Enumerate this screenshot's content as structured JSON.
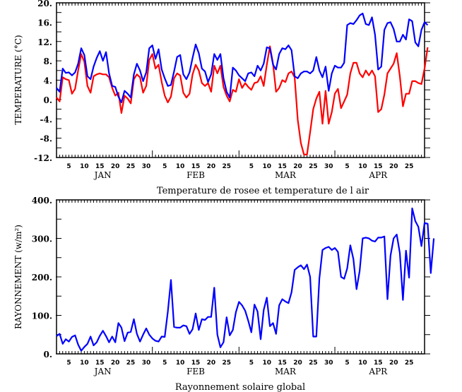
{
  "chart_data": [
    {
      "type": "line",
      "title": "Temperature de rosee et temperature de l air",
      "xlabel": "",
      "ylabel": "TEMPERATURE (°C)",
      "ylim": [
        -12,
        20
      ],
      "yticks": [
        "20.",
        "16.",
        "12.",
        "8.",
        "4.",
        "0.",
        "-4.",
        "-8.",
        "-12."
      ],
      "ytick_values": [
        20,
        16,
        12,
        8,
        4,
        0,
        -4,
        -8,
        -12
      ],
      "x_start": "Jan 1",
      "x_unit": "day",
      "xlim": [
        1,
        120
      ],
      "months": [
        "JAN",
        "FEB",
        "MAR",
        "APR"
      ],
      "day_tick_labels": [
        "5",
        "10",
        "15",
        "20",
        "25",
        "30",
        "5",
        "10",
        "15",
        "20",
        "25",
        "5",
        "10",
        "15",
        "20",
        "25",
        "30",
        "5",
        "10",
        "15",
        "20",
        "25"
      ],
      "grid": false,
      "series": [
        {
          "name": "Temperature de l air",
          "color": "#0000ff",
          "values": [
            2.4,
            1.6,
            6.4,
            5.5,
            5.6,
            5.0,
            5.6,
            7.4,
            10.6,
            9.2,
            4.8,
            4.2,
            6.8,
            8.6,
            10.0,
            8.0,
            9.8,
            5.4,
            2.8,
            2.6,
            0.6,
            -0.6,
            1.8,
            1.2,
            0.4,
            5.2,
            7.4,
            6.0,
            3.8,
            5.6,
            10.6,
            11.2,
            8.4,
            10.4,
            6.2,
            4.4,
            2.8,
            3.0,
            5.8,
            8.8,
            9.2,
            5.2,
            4.2,
            5.6,
            8.6,
            11.4,
            9.6,
            6.4,
            5.8,
            3.6,
            5.2,
            9.4,
            8.2,
            9.4,
            4.4,
            1.6,
            0.4,
            6.6,
            6.0,
            5.0,
            4.4,
            3.8,
            5.4,
            5.6,
            4.8,
            7.0,
            6.0,
            7.4,
            10.8,
            10.6,
            7.2,
            6.2,
            9.4,
            10.6,
            10.4,
            11.2,
            10.2,
            4.8,
            4.4,
            5.4,
            5.8,
            5.8,
            5.4,
            6.0,
            8.8,
            6.0,
            4.6,
            6.8,
            1.8,
            5.4,
            7.0,
            6.6,
            6.6,
            7.6,
            15.4,
            15.8,
            15.6,
            16.4,
            17.4,
            17.8,
            15.6,
            15.4,
            17.0,
            13.4,
            6.2,
            6.8,
            14.4,
            15.8,
            16.0,
            14.6,
            12.0,
            12.0,
            13.4,
            12.4,
            16.6,
            16.2,
            11.8,
            11.0,
            14.4,
            16.0,
            15.4
          ]
        },
        {
          "name": "Temperature de rosee",
          "color": "#ff0000",
          "values": [
            0.4,
            -0.4,
            4.6,
            4.2,
            4.0,
            1.2,
            2.2,
            6.0,
            9.4,
            7.8,
            2.8,
            1.4,
            4.8,
            5.2,
            5.4,
            5.2,
            5.2,
            4.6,
            2.4,
            0.8,
            1.4,
            -2.8,
            0.8,
            0.2,
            -0.8,
            4.2,
            5.2,
            4.6,
            1.4,
            2.8,
            8.2,
            9.4,
            6.4,
            7.2,
            3.6,
            0.8,
            -0.6,
            0.6,
            4.4,
            5.4,
            5.0,
            1.4,
            0.4,
            1.2,
            5.2,
            7.2,
            6.0,
            3.4,
            2.8,
            3.4,
            1.6,
            7.0,
            5.4,
            7.0,
            2.6,
            0.8,
            -0.4,
            2.0,
            1.6,
            4.2,
            2.4,
            3.4,
            2.6,
            2.0,
            3.4,
            3.6,
            4.8,
            2.8,
            7.2,
            11.0,
            7.4,
            1.6,
            2.4,
            4.0,
            3.6,
            5.4,
            5.8,
            4.6,
            -4.2,
            -9.0,
            -11.4,
            -11.4,
            -6.8,
            -2.0,
            0.2,
            1.6,
            -5.0,
            1.8,
            -5.0,
            -2.6,
            1.2,
            2.2,
            -1.8,
            -0.4,
            1.0,
            5.4,
            7.6,
            7.6,
            5.4,
            4.6,
            6.0,
            5.0,
            6.0,
            4.8,
            -2.6,
            -2.0,
            1.0,
            5.4,
            6.4,
            7.4,
            9.6,
            4.8,
            -1.4,
            1.2,
            1.2,
            3.8,
            3.8,
            3.4,
            3.2,
            6.4,
            10.8
          ]
        }
      ]
    },
    {
      "type": "line",
      "title": "Rayonnement solaire global",
      "xlabel": "",
      "ylabel": "RAYONNEMENT (w/m²)",
      "ylim": [
        0,
        400
      ],
      "yticks": [
        "400.",
        "300.",
        "200.",
        "100.",
        "0."
      ],
      "ytick_values": [
        400,
        300,
        200,
        100,
        0
      ],
      "x_start": "Jan 1",
      "x_unit": "day",
      "xlim": [
        1,
        120
      ],
      "months": [
        "JAN",
        "FEB",
        "MAR",
        "APR"
      ],
      "day_tick_labels": [
        "5",
        "10",
        "15",
        "20",
        "25",
        "30",
        "5",
        "10",
        "15",
        "20",
        "25",
        "5",
        "10",
        "15",
        "20",
        "25",
        "30",
        "5",
        "10",
        "15",
        "20",
        "25"
      ],
      "grid": false,
      "series": [
        {
          "name": "Rayonnement solaire global",
          "color": "#0000ff",
          "values": [
            46,
            52,
            26,
            38,
            32,
            44,
            48,
            24,
            8,
            18,
            26,
            45,
            22,
            30,
            47,
            60,
            46,
            30,
            45,
            30,
            80,
            68,
            33,
            55,
            57,
            90,
            52,
            32,
            50,
            66,
            50,
            40,
            34,
            32,
            45,
            44,
            110,
            192,
            70,
            68,
            68,
            74,
            72,
            52,
            64,
            105,
            62,
            90,
            88,
            96,
            96,
            172,
            50,
            17,
            30,
            95,
            48,
            62,
            108,
            135,
            126,
            112,
            86,
            56,
            128,
            110,
            38,
            114,
            146,
            72,
            80,
            52,
            126,
            142,
            136,
            132,
            160,
            218,
            225,
            230,
            220,
            232,
            200,
            45,
            45,
            196,
            270,
            275,
            278,
            270,
            275,
            265,
            200,
            195,
            222,
            282,
            246,
            168,
            215,
            300,
            302,
            300,
            294,
            292,
            302,
            302,
            305,
            142,
            255,
            300,
            310,
            262,
            140,
            268,
            198,
            378,
            345,
            330,
            280,
            340,
            338,
            210,
            300
          ]
        }
      ]
    }
  ],
  "panels": {
    "top": {
      "ylabel": "TEMPERATURE (°C)",
      "title": "Temperature de rosee et temperature de l air"
    },
    "bottom": {
      "ylabel": "RAYONNEMENT (w/m²)",
      "title": "Rayonnement solaire global"
    }
  }
}
